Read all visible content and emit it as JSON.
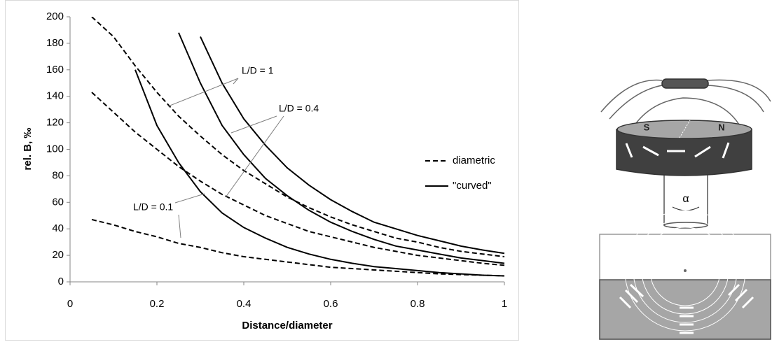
{
  "chart_data": {
    "type": "line",
    "x_label": "Distance/diameter",
    "y_label": "rel. B, ‰",
    "x": [
      0.05,
      0.1,
      0.15,
      0.2,
      0.25,
      0.3,
      0.35,
      0.4,
      0.45,
      0.5,
      0.55,
      0.6,
      0.65,
      0.7,
      0.75,
      0.8,
      0.85,
      0.9,
      0.95,
      1
    ],
    "series": [
      {
        "style": "dashed",
        "color": "#000000",
        "values": [
          47,
          43,
          38,
          34,
          29,
          26,
          22,
          19,
          17,
          15,
          13,
          11,
          10,
          9,
          8,
          7,
          6,
          5.5,
          5,
          4.5
        ]
      },
      {
        "style": "dashed",
        "color": "#000000",
        "values": [
          143,
          128,
          113,
          100,
          87,
          76,
          66,
          58,
          50,
          44,
          38,
          34,
          30,
          26,
          23,
          20,
          18,
          16,
          14,
          12.5
        ]
      },
      {
        "style": "dashed",
        "color": "#000000",
        "values": [
          200,
          185,
          163,
          143,
          125,
          110,
          96,
          84,
          74,
          64,
          56,
          49,
          43,
          38,
          33,
          30,
          26,
          23,
          21,
          19
        ]
      },
      {
        "style": "solid",
        "color": "#000000",
        "values": [
          null,
          null,
          160,
          118,
          90,
          68,
          52,
          41,
          33,
          26,
          21,
          17,
          14,
          11.5,
          10,
          8.5,
          7,
          6,
          5,
          4.5
        ]
      },
      {
        "style": "solid",
        "color": "#000000",
        "values": [
          null,
          null,
          null,
          null,
          188,
          150,
          118,
          96,
          78,
          65,
          54,
          45,
          38,
          32,
          27,
          24,
          21,
          18,
          16,
          14
        ]
      },
      {
        "style": "solid",
        "color": "#000000",
        "values": [
          null,
          null,
          null,
          null,
          null,
          185,
          150,
          123,
          103,
          86,
          73,
          62,
          53,
          45,
          40,
          35,
          31,
          27,
          24,
          21.5
        ]
      }
    ],
    "legend": [
      {
        "label": "diametric",
        "style": "dashed"
      },
      {
        "label": "\"curved\"",
        "style": "solid"
      }
    ],
    "annotations": [
      "L/D = 1",
      "L/D = 0.4",
      "L/D = 0.1"
    ],
    "xlim": [
      0,
      1
    ],
    "xticks": [
      0,
      0.2,
      0.4,
      0.6,
      0.8,
      1
    ],
    "ylim": [
      0,
      200
    ],
    "yticks": [
      0,
      20,
      40,
      60,
      80,
      100,
      120,
      140,
      160,
      180,
      200
    ]
  },
  "diagram": {
    "labels": [
      "S",
      "N",
      "α"
    ]
  }
}
